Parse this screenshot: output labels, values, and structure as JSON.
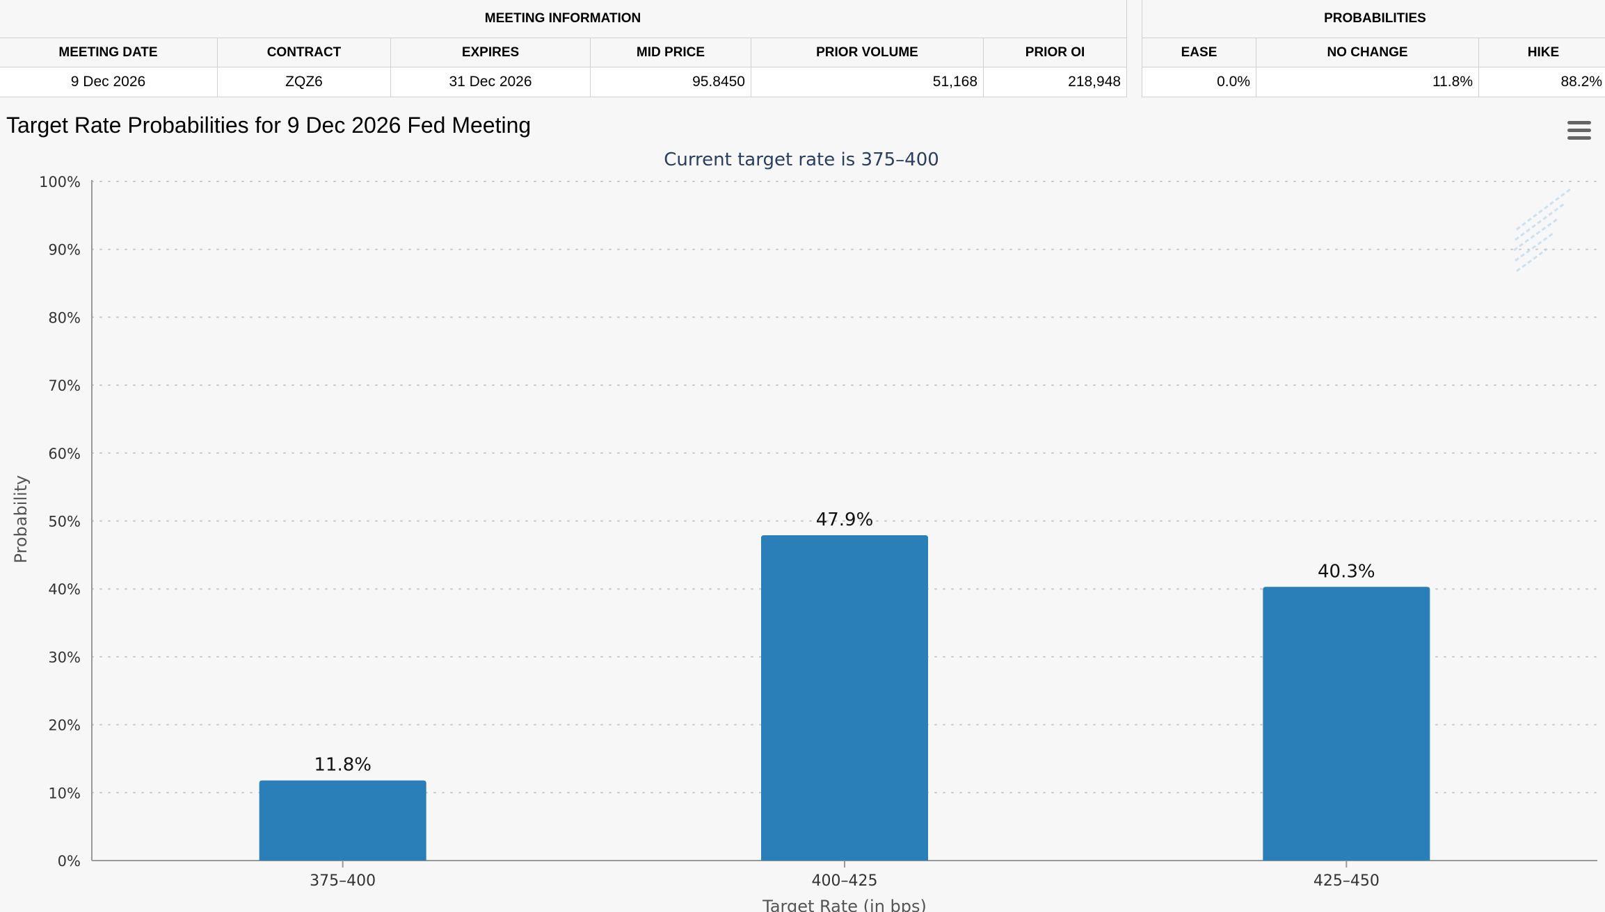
{
  "meeting_info": {
    "header": "MEETING INFORMATION",
    "columns": [
      "MEETING DATE",
      "CONTRACT",
      "EXPIRES",
      "MID PRICE",
      "PRIOR VOLUME",
      "PRIOR OI"
    ],
    "row": [
      "9 Dec 2026",
      "ZQZ6",
      "31 Dec 2026",
      "95.8450",
      "51,168",
      "218,948"
    ]
  },
  "probabilities": {
    "header": "PROBABILITIES",
    "columns": [
      "EASE",
      "NO CHANGE",
      "HIKE"
    ],
    "row": [
      "0.0%",
      "11.8%",
      "88.2%"
    ]
  },
  "chart_data": {
    "type": "bar",
    "title": "Target Rate Probabilities for 9 Dec 2026 Fed Meeting",
    "subtitle": "Current target rate is 375–400",
    "xlabel": "Target Rate (in bps)",
    "ylabel": "Probability",
    "categories": [
      "375–400",
      "400–425",
      "425–450"
    ],
    "values": [
      11.8,
      47.9,
      40.3
    ],
    "data_labels": [
      "11.8%",
      "47.9%",
      "40.3%"
    ],
    "ylim": [
      0,
      100
    ],
    "yticks": [
      0,
      10,
      20,
      30,
      40,
      50,
      60,
      70,
      80,
      90,
      100
    ],
    "ytick_labels": [
      "0%",
      "10%",
      "20%",
      "30%",
      "40%",
      "50%",
      "60%",
      "70%",
      "80%",
      "90%",
      "100%"
    ],
    "grid": true,
    "bar_color": "#2a7fb8"
  }
}
